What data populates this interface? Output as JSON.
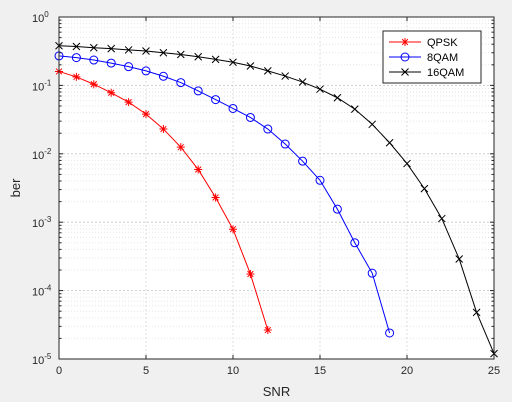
{
  "chart_data": {
    "type": "line",
    "title": "",
    "xlabel": "SNR",
    "ylabel": "ber",
    "xlim": [
      0,
      25
    ],
    "ylim": [
      1e-05,
      1
    ],
    "yscale": "log",
    "grid": true,
    "legend_position": "top-right",
    "x_ticks": [
      {
        "value": 0,
        "label": "0"
      },
      {
        "value": 5,
        "label": "5"
      },
      {
        "value": 10,
        "label": "10"
      },
      {
        "value": 15,
        "label": "15"
      },
      {
        "value": 20,
        "label": "20"
      },
      {
        "value": 25,
        "label": "25"
      }
    ],
    "y_ticks": [
      {
        "value": 1e-05,
        "base": "10",
        "exp": "-5"
      },
      {
        "value": 0.0001,
        "base": "10",
        "exp": "-4"
      },
      {
        "value": 0.001,
        "base": "10",
        "exp": "-3"
      },
      {
        "value": 0.01,
        "base": "10",
        "exp": "-2"
      },
      {
        "value": 0.1,
        "base": "10",
        "exp": "-1"
      },
      {
        "value": 1,
        "base": "10",
        "exp": "0"
      }
    ],
    "series": [
      {
        "name": "QPSK",
        "color": "#ff0000",
        "marker": "asterisk",
        "x": [
          0,
          1,
          2,
          3,
          4,
          5,
          6,
          7,
          8,
          9,
          10,
          11,
          12
        ],
        "y": [
          0.16,
          0.133,
          0.104,
          0.078,
          0.057,
          0.038,
          0.023,
          0.0125,
          0.0059,
          0.0023,
          0.00079,
          0.000175,
          2.65e-05
        ]
      },
      {
        "name": "8QAM",
        "color": "#0000ff",
        "marker": "circle",
        "x": [
          0,
          1,
          2,
          3,
          4,
          5,
          6,
          7,
          8,
          9,
          10,
          11,
          12,
          13,
          14,
          15,
          16,
          17,
          18,
          19
        ],
        "y": [
          0.27,
          0.255,
          0.235,
          0.212,
          0.188,
          0.163,
          0.136,
          0.11,
          0.083,
          0.062,
          0.046,
          0.034,
          0.023,
          0.0139,
          0.0078,
          0.0041,
          0.00155,
          0.0005,
          0.00018,
          2.4e-05
        ]
      },
      {
        "name": "16QAM",
        "color": "#000000",
        "marker": "x",
        "x": [
          0,
          1,
          2,
          3,
          4,
          5,
          6,
          7,
          8,
          9,
          10,
          11,
          12,
          13,
          14,
          15,
          16,
          17,
          18,
          19,
          20,
          21,
          22,
          23,
          24,
          25
        ],
        "y": [
          0.38,
          0.37,
          0.355,
          0.345,
          0.33,
          0.318,
          0.3,
          0.283,
          0.262,
          0.24,
          0.218,
          0.192,
          0.163,
          0.137,
          0.112,
          0.088,
          0.066,
          0.045,
          0.027,
          0.0145,
          0.0072,
          0.0031,
          0.00113,
          0.00029,
          4.8e-05,
          1.2e-05
        ]
      }
    ]
  }
}
